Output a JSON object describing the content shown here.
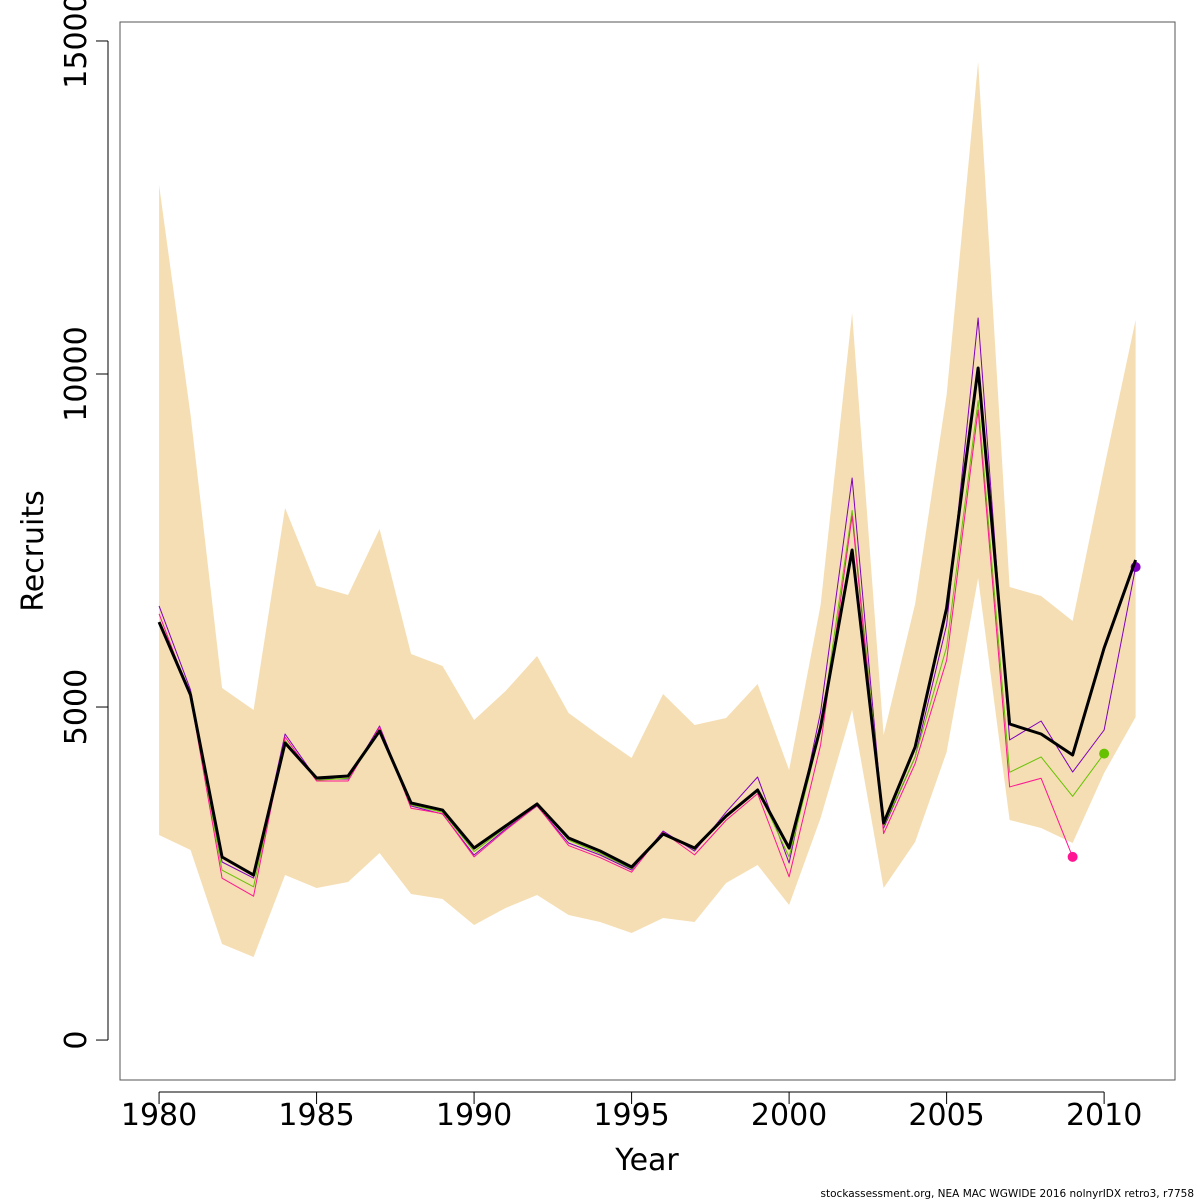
{
  "chart_data": {
    "type": "line",
    "x_label": "Year",
    "y_label": "Recruits",
    "footer": "stockassessment.org, NEA MAC WGWIDE 2016 nolnyrIDX retro3, r7758",
    "xlim": [
      1978.76,
      2012.25
    ],
    "ylim": [
      -600,
      15285
    ],
    "xticks": [
      1980,
      1985,
      1990,
      1995,
      2000,
      2005,
      2010
    ],
    "yticks": [
      0,
      5000,
      10000,
      15000
    ],
    "x": [
      1980,
      1981,
      1982,
      1983,
      1984,
      1985,
      1986,
      1987,
      1988,
      1989,
      1990,
      1991,
      1992,
      1993,
      1994,
      1995,
      1996,
      1997,
      1998,
      1999,
      2000,
      2001,
      2002,
      2003,
      2004,
      2005,
      2006,
      2007,
      2008,
      2009,
      2010,
      2011
    ],
    "band": {
      "color": "#f5deb3",
      "upper": [
        12838,
        9384,
        5285,
        4955,
        7988,
        6817,
        6682,
        7673,
        5796,
        5616,
        4805,
        5240,
        5766,
        4910,
        4565,
        4234,
        5195,
        4730,
        4835,
        5345,
        4054,
        6532,
        10916,
        4580,
        6547,
        9685,
        14685,
        6802,
        6667,
        6291,
        8589,
        10811
      ],
      "lower": [
        3078,
        2853,
        1441,
        1246,
        2477,
        2282,
        2372,
        2808,
        2192,
        2117,
        1727,
        1982,
        2177,
        1877,
        1772,
        1607,
        1832,
        1772,
        2357,
        2628,
        2027,
        3333,
        4955,
        2282,
        2973,
        4324,
        6937,
        3303,
        3183,
        2958,
        4009,
        4850
      ]
    },
    "series": [
      {
        "color": "#7f00bf",
        "width": 1,
        "end_marker": true,
        "values": [
          6517,
          5255,
          2673,
          2432,
          4595,
          3919,
          3919,
          4715,
          3514,
          3393,
          2778,
          3168,
          3514,
          2958,
          2778,
          2553,
          3138,
          2838,
          3423,
          3949,
          2658,
          4925,
          8438,
          3183,
          4249,
          6231,
          10841,
          4505,
          4790,
          4024,
          4655,
          7102
        ]
      },
      {
        "color": "#66c200",
        "width": 1,
        "end_marker": true,
        "values": [
          6250,
          5200,
          2550,
          2300,
          4500,
          3900,
          3930,
          4620,
          3530,
          3420,
          2830,
          3190,
          3530,
          3000,
          2800,
          2570,
          3110,
          2860,
          3380,
          3760,
          2750,
          4650,
          7950,
          3210,
          4250,
          5900,
          9600,
          4020,
          4250,
          3660,
          4300,
          null
        ]
      },
      {
        "color": "#ff1493",
        "width": 1,
        "end_marker": true,
        "values": [
          6400,
          5150,
          2430,
          2160,
          4550,
          3890,
          3890,
          4700,
          3480,
          3400,
          2750,
          3150,
          3520,
          2920,
          2740,
          2520,
          3120,
          2780,
          3300,
          3700,
          2450,
          4430,
          7870,
          3100,
          4150,
          5700,
          9460,
          3800,
          3930,
          2750,
          null,
          null
        ]
      },
      {
        "color": "#000000",
        "width": 3,
        "end_marker": false,
        "values": [
          6276,
          5180,
          2748,
          2477,
          4459,
          3934,
          3964,
          4640,
          3559,
          3453,
          2883,
          3213,
          3544,
          3033,
          2838,
          2598,
          3093,
          2883,
          3363,
          3754,
          2883,
          4700,
          7357,
          3258,
          4399,
          6486,
          10090,
          4745,
          4595,
          4279,
          5886,
          7207
        ]
      }
    ]
  }
}
